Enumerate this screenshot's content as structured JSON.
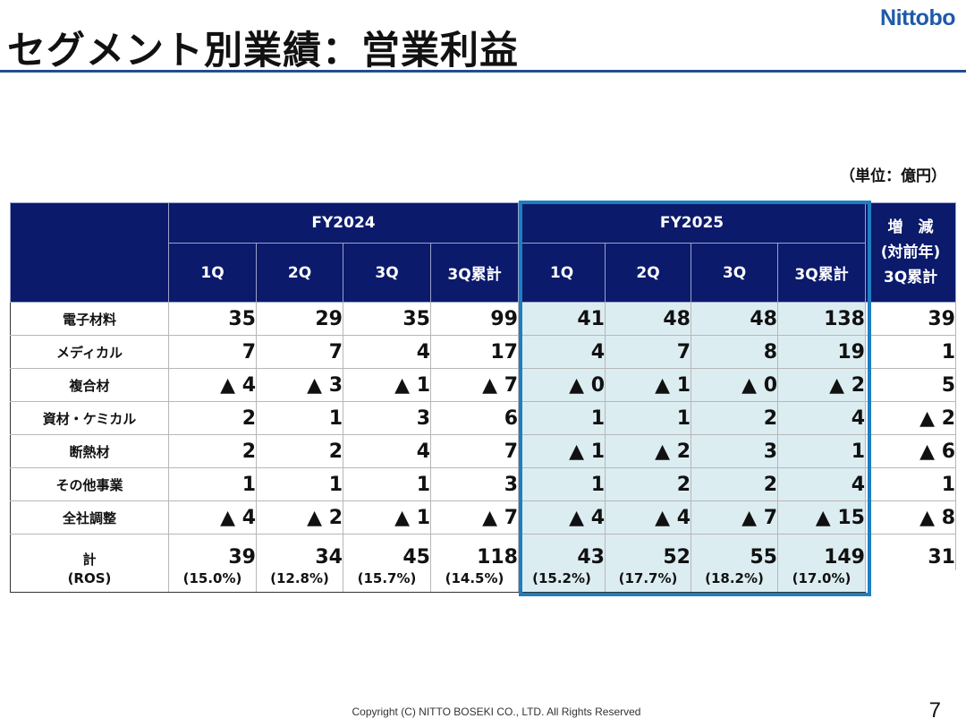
{
  "header": {
    "title": "セグメント別業績：営業利益",
    "logo": "Nittobo"
  },
  "unit_note": "（単位：億円）",
  "table": {
    "fy2024_label": "FY2024",
    "fy2025_label": "FY2025",
    "change_label_line1": "増　減",
    "change_label_line2": "(対前年)",
    "change_label_line3": "3Q累計",
    "quarter_labels": [
      "1Q",
      "2Q",
      "3Q",
      "3Q累計"
    ],
    "rows": [
      {
        "label": "電子材料",
        "fy2024": [
          "35",
          "29",
          "35",
          "99"
        ],
        "fy2025": [
          "41",
          "48",
          "48",
          "138"
        ],
        "change": "39"
      },
      {
        "label": "メディカル",
        "fy2024": [
          "7",
          "7",
          "4",
          "17"
        ],
        "fy2025": [
          "4",
          "7",
          "8",
          "19"
        ],
        "change": "1"
      },
      {
        "label": "複合材",
        "fy2024": [
          "▲ 4",
          "▲ 3",
          "▲ 1",
          "▲ 7"
        ],
        "fy2025": [
          "▲ 0",
          "▲ 1",
          "▲ 0",
          "▲ 2"
        ],
        "change": "5"
      },
      {
        "label": "資材・ケミカル",
        "fy2024": [
          "2",
          "1",
          "3",
          "6"
        ],
        "fy2025": [
          "1",
          "1",
          "2",
          "4"
        ],
        "change": "▲ 2"
      },
      {
        "label": "断熱材",
        "fy2024": [
          "2",
          "2",
          "4",
          "7"
        ],
        "fy2025": [
          "▲ 1",
          "▲ 2",
          "3",
          "1"
        ],
        "change": "▲ 6"
      },
      {
        "label": "その他事業",
        "fy2024": [
          "1",
          "1",
          "1",
          "3"
        ],
        "fy2025": [
          "1",
          "2",
          "2",
          "4"
        ],
        "change": "1"
      },
      {
        "label": "全社調整",
        "fy2024": [
          "▲ 4",
          "▲ 2",
          "▲ 1",
          "▲ 7"
        ],
        "fy2025": [
          "▲ 4",
          "▲ 4",
          "▲ 7",
          "▲ 15"
        ],
        "change": "▲ 8"
      }
    ],
    "total": {
      "label": "計",
      "fy2024": [
        "39",
        "34",
        "45",
        "118"
      ],
      "fy2025": [
        "43",
        "52",
        "55",
        "149"
      ],
      "change": "31"
    },
    "ros": {
      "label": "(ROS)",
      "fy2024": [
        "(15.0%)",
        "(12.8%)",
        "(15.7%)",
        "(14.5%)"
      ],
      "fy2025": [
        "(15.2%)",
        "(17.7%)",
        "(18.2%)",
        "(17.0%)"
      ]
    }
  },
  "footer": {
    "copyright": "Copyright (C)  NITTO BOSEKI CO., LTD. All Rights Reserved",
    "page_number": "7"
  }
}
